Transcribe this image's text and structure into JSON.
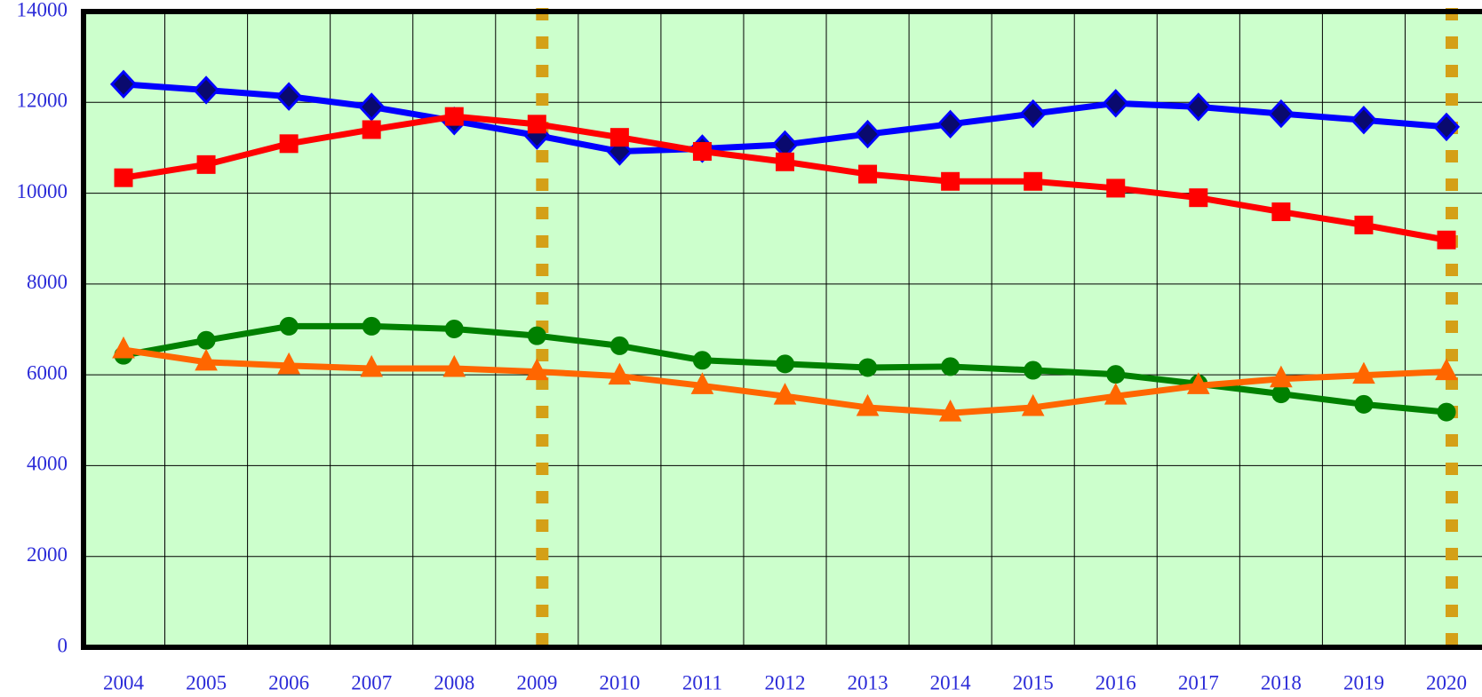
{
  "chart_data": {
    "type": "line",
    "categories": [
      "2004",
      "2005",
      "2006",
      "2007",
      "2008",
      "2009",
      "2010",
      "2011",
      "2012",
      "2013",
      "2014",
      "2015",
      "2016",
      "2017",
      "2018",
      "2019",
      "2020"
    ],
    "series": [
      {
        "color": "#0000ff",
        "marker": "diamond",
        "marker_fill": "#0a0a6e",
        "values": [
          12400,
          12270,
          12130,
          11900,
          11590,
          11270,
          10920,
          10980,
          11070,
          11300,
          11520,
          11750,
          11980,
          11900,
          11750,
          11610,
          11460
        ]
      },
      {
        "color": "#ff0000",
        "marker": "square",
        "marker_fill": "#ff0000",
        "values": [
          10340,
          10630,
          11090,
          11400,
          11690,
          11520,
          11230,
          10920,
          10690,
          10420,
          10260,
          10260,
          10110,
          9900,
          9590,
          9300,
          8970
        ]
      },
      {
        "color": "#008000",
        "marker": "circle",
        "marker_fill": "#008000",
        "values": [
          6430,
          6760,
          7070,
          7070,
          7010,
          6860,
          6640,
          6320,
          6240,
          6160,
          6180,
          6100,
          6010,
          5800,
          5580,
          5350,
          5180
        ]
      },
      {
        "color": "#ff6600",
        "marker": "triangle",
        "marker_fill": "#ff6600",
        "values": [
          6550,
          6280,
          6200,
          6140,
          6140,
          6070,
          5970,
          5760,
          5530,
          5280,
          5160,
          5280,
          5530,
          5760,
          5910,
          5990,
          6070
        ]
      }
    ],
    "highlight_categories": [
      5,
      16
    ],
    "highlight_color": "#d4a017",
    "ylim": [
      0,
      14000
    ],
    "yticks": [
      0,
      2000,
      4000,
      6000,
      8000,
      10000,
      12000,
      14000
    ],
    "grid": true,
    "background": "#ccffcc"
  }
}
